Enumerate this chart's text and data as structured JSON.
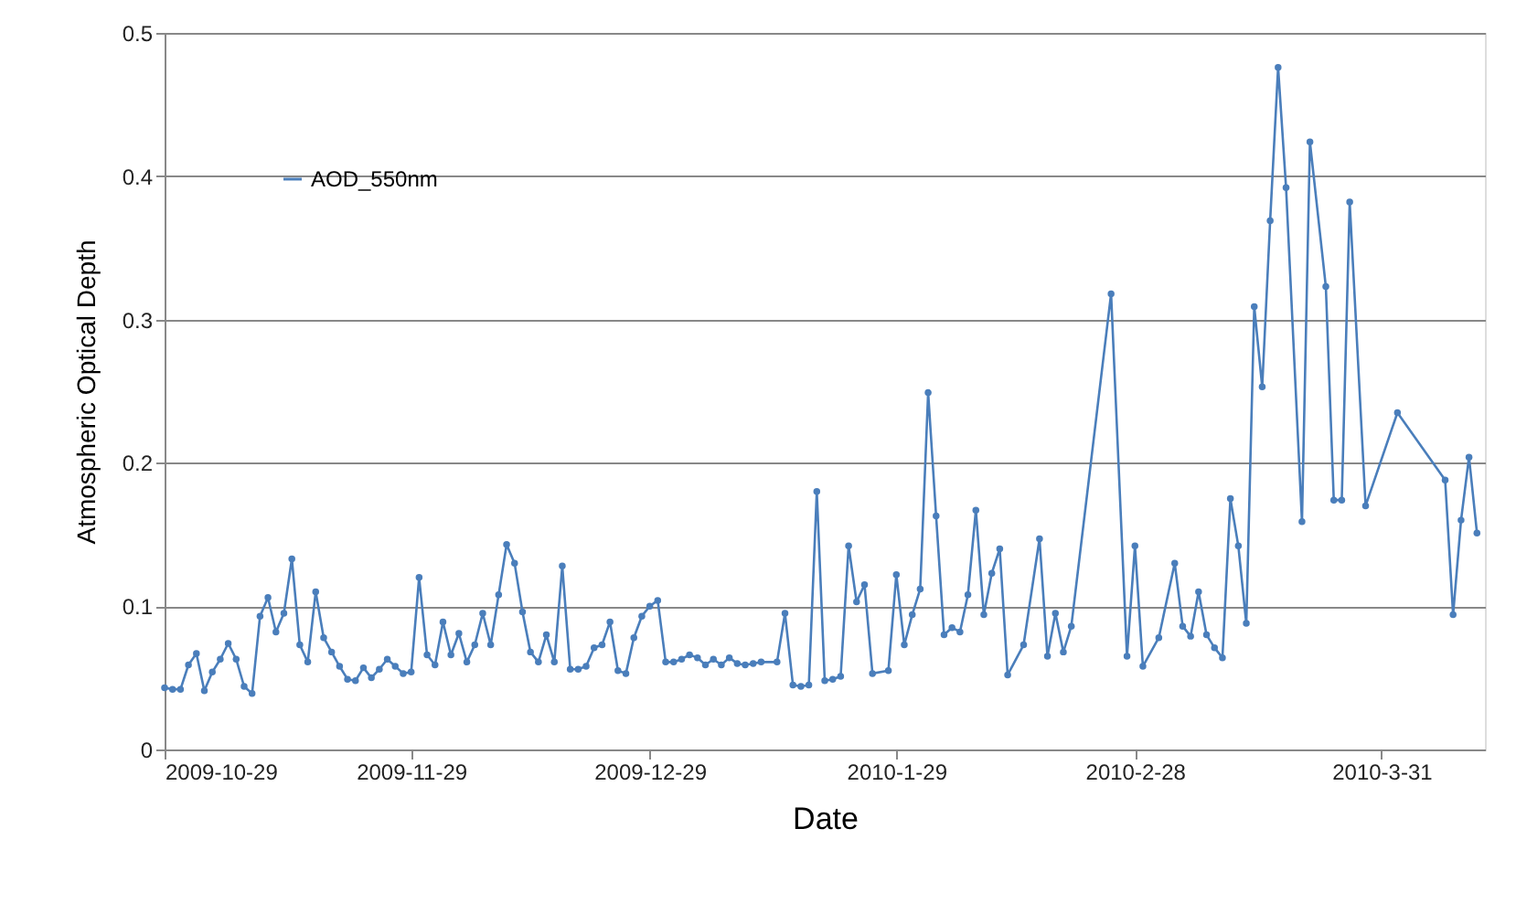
{
  "chart_data": {
    "type": "line",
    "xlabel": "Date",
    "ylabel": "Atmospheric Optical Depth",
    "x": [
      "2009-10-29",
      "2009-10-30",
      "2009-10-31",
      "2009-11-01",
      "2009-11-02",
      "2009-11-03",
      "2009-11-04",
      "2009-11-05",
      "2009-11-06",
      "2009-11-07",
      "2009-11-08",
      "2009-11-09",
      "2009-11-10",
      "2009-11-11",
      "2009-11-12",
      "2009-11-13",
      "2009-11-14",
      "2009-11-15",
      "2009-11-16",
      "2009-11-17",
      "2009-11-18",
      "2009-11-19",
      "2009-11-20",
      "2009-11-21",
      "2009-11-22",
      "2009-11-23",
      "2009-11-24",
      "2009-11-25",
      "2009-11-26",
      "2009-11-27",
      "2009-11-28",
      "2009-11-29",
      "2009-11-30",
      "2009-12-01",
      "2009-12-02",
      "2009-12-03",
      "2009-12-04",
      "2009-12-05",
      "2009-12-06",
      "2009-12-07",
      "2009-12-08",
      "2009-12-09",
      "2009-12-10",
      "2009-12-11",
      "2009-12-12",
      "2009-12-13",
      "2009-12-14",
      "2009-12-15",
      "2009-12-16",
      "2009-12-17",
      "2009-12-18",
      "2009-12-19",
      "2009-12-20",
      "2009-12-21",
      "2009-12-22",
      "2009-12-23",
      "2009-12-24",
      "2009-12-25",
      "2009-12-26",
      "2009-12-27",
      "2009-12-28",
      "2009-12-29",
      "2009-12-30",
      "2009-12-31",
      "2010-01-01",
      "2010-01-02",
      "2010-01-03",
      "2010-01-04",
      "2010-01-05",
      "2010-01-06",
      "2010-01-07",
      "2010-01-08",
      "2010-01-09",
      "2010-01-10",
      "2010-01-11",
      "2010-01-12",
      "2010-01-14",
      "2010-01-15",
      "2010-01-16",
      "2010-01-17",
      "2010-01-18",
      "2010-01-19",
      "2010-01-20",
      "2010-01-21",
      "2010-01-22",
      "2010-01-23",
      "2010-01-24",
      "2010-01-25",
      "2010-01-26",
      "2010-01-28",
      "2010-01-29",
      "2010-01-30",
      "2010-01-31",
      "2010-02-01",
      "2010-02-02",
      "2010-02-03",
      "2010-02-04",
      "2010-02-05",
      "2010-02-06",
      "2010-02-07",
      "2010-02-08",
      "2010-02-09",
      "2010-02-10",
      "2010-02-11",
      "2010-02-12",
      "2010-02-14",
      "2010-02-16",
      "2010-02-17",
      "2010-02-18",
      "2010-02-19",
      "2010-02-20",
      "2010-02-25",
      "2010-02-27",
      "2010-02-28",
      "2010-03-01",
      "2010-03-03",
      "2010-03-05",
      "2010-03-06",
      "2010-03-07",
      "2010-03-08",
      "2010-03-09",
      "2010-03-10",
      "2010-03-11",
      "2010-03-12",
      "2010-03-13",
      "2010-03-14",
      "2010-03-15",
      "2010-03-16",
      "2010-03-17",
      "2010-03-18",
      "2010-03-19",
      "2010-03-21",
      "2010-03-22",
      "2010-03-24",
      "2010-03-25",
      "2010-03-26",
      "2010-03-27",
      "2010-03-29",
      "2010-04-02",
      "2010-04-08",
      "2010-04-09",
      "2010-04-10",
      "2010-04-11",
      "2010-04-12"
    ],
    "series": [
      {
        "name": "AOD_550nm",
        "color": "#4a7ebb",
        "values": [
          0.043,
          0.042,
          0.042,
          0.059,
          0.067,
          0.041,
          0.054,
          0.063,
          0.074,
          0.063,
          0.044,
          0.039,
          0.093,
          0.106,
          0.082,
          0.095,
          0.133,
          0.073,
          0.061,
          0.11,
          0.078,
          0.068,
          0.058,
          0.049,
          0.048,
          0.057,
          0.05,
          0.056,
          0.063,
          0.058,
          0.053,
          0.054,
          0.12,
          0.066,
          0.059,
          0.089,
          0.066,
          0.081,
          0.061,
          0.073,
          0.095,
          0.073,
          0.108,
          0.143,
          0.13,
          0.096,
          0.068,
          0.061,
          0.08,
          0.061,
          0.128,
          0.056,
          0.056,
          0.058,
          0.071,
          0.073,
          0.089,
          0.055,
          0.053,
          0.078,
          0.093,
          0.1,
          0.104,
          0.061,
          0.061,
          0.063,
          0.066,
          0.064,
          0.059,
          0.063,
          0.059,
          0.064,
          0.06,
          0.059,
          0.06,
          0.061,
          0.061,
          0.095,
          0.045,
          0.044,
          0.045,
          0.18,
          0.048,
          0.049,
          0.051,
          0.142,
          0.103,
          0.115,
          0.053,
          0.055,
          0.122,
          0.073,
          0.094,
          0.112,
          0.249,
          0.163,
          0.08,
          0.085,
          0.082,
          0.108,
          0.167,
          0.094,
          0.123,
          0.14,
          0.052,
          0.073,
          0.147,
          0.065,
          0.095,
          0.068,
          0.086,
          0.318,
          0.065,
          0.142,
          0.058,
          0.078,
          0.13,
          0.086,
          0.079,
          0.11,
          0.08,
          0.071,
          0.064,
          0.175,
          0.142,
          0.088,
          0.309,
          0.253,
          0.369,
          0.476,
          0.392,
          0.159,
          0.424,
          0.323,
          0.174,
          0.174,
          0.382,
          0.17,
          0.235,
          0.188,
          0.094,
          0.16,
          0.204,
          0.151
        ]
      }
    ],
    "xlim": [
      "2009-10-29",
      "2010-04-13"
    ],
    "xticks": [
      {
        "value": "2009-10-29",
        "label": "2009-10-29"
      },
      {
        "value": "2009-11-29",
        "label": "2009-11-29"
      },
      {
        "value": "2009-12-29",
        "label": "2009-12-29"
      },
      {
        "value": "2010-01-29",
        "label": "2010-1-29"
      },
      {
        "value": "2010-02-28",
        "label": "2010-2-28"
      },
      {
        "value": "2010-03-31",
        "label": "2010-3-31"
      }
    ],
    "ylim": [
      0,
      0.5
    ],
    "yticks": [
      0,
      0.1,
      0.2,
      0.3,
      0.4,
      0.5
    ],
    "grid": "y",
    "legend": "top left",
    "marker": "circle",
    "line_style": "solid"
  }
}
